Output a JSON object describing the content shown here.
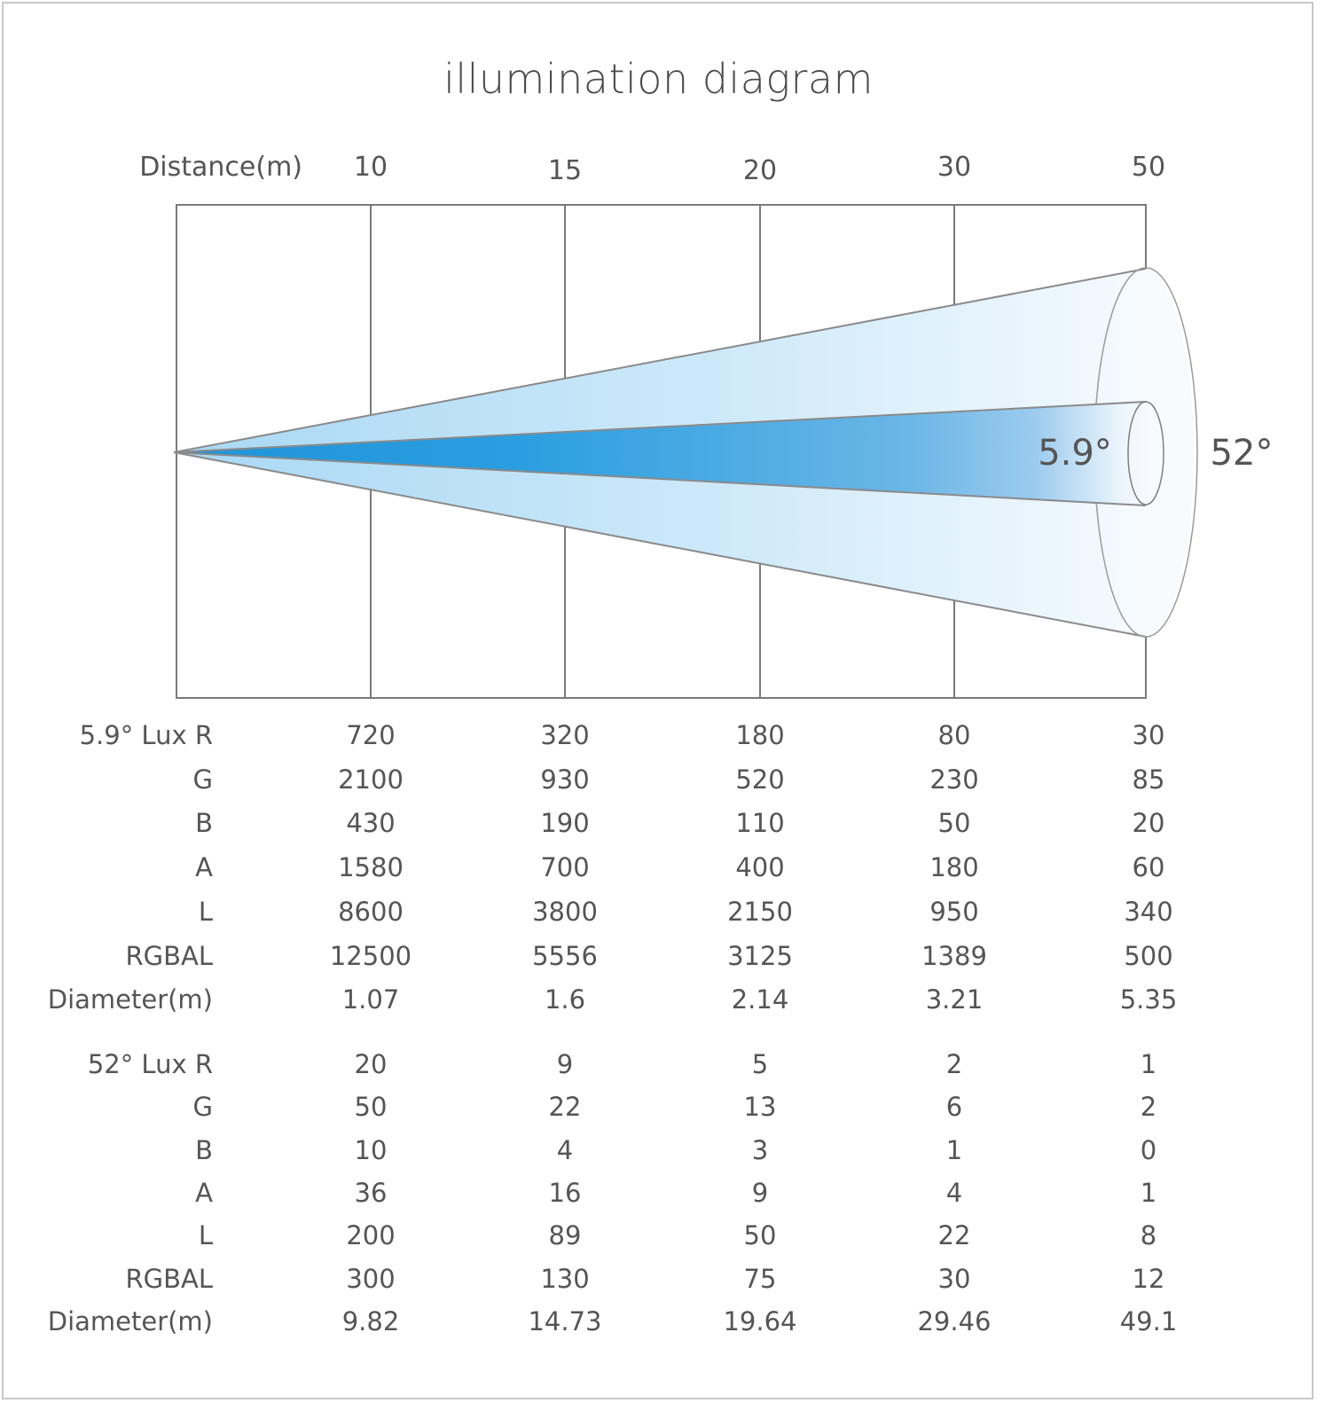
{
  "title": "illumination diagram",
  "distance_label": "Distance(m)",
  "distances": [
    "10",
    "15",
    "20",
    "30",
    "50"
  ],
  "beam_labels": {
    "narrow": "5.9°",
    "wide": "52°"
  },
  "colors": {
    "line": "#7a7a7a",
    "beam_dark": "#1f94d8",
    "beam_light": "#cfe9f8"
  },
  "tables": [
    {
      "rows": [
        {
          "label": "5.9° Lux R",
          "values": [
            "720",
            "320",
            "180",
            "80",
            "30"
          ]
        },
        {
          "label": "G",
          "values": [
            "2100",
            "930",
            "520",
            "230",
            "85"
          ]
        },
        {
          "label": "B",
          "values": [
            "430",
            "190",
            "110",
            "50",
            "20"
          ]
        },
        {
          "label": "A",
          "values": [
            "1580",
            "700",
            "400",
            "180",
            "60"
          ]
        },
        {
          "label": "L",
          "values": [
            "8600",
            "3800",
            "2150",
            "950",
            "340"
          ]
        },
        {
          "label": "RGBAL",
          "values": [
            "12500",
            "5556",
            "3125",
            "1389",
            "500"
          ]
        },
        {
          "label": "Diameter(m)",
          "values": [
            "1.07",
            "1.6",
            "2.14",
            "3.21",
            "5.35"
          ]
        }
      ]
    },
    {
      "rows": [
        {
          "label": "52° Lux R",
          "values": [
            "20",
            "9",
            "5",
            "2",
            "1"
          ]
        },
        {
          "label": "G",
          "values": [
            "50",
            "22",
            "13",
            "6",
            "2"
          ]
        },
        {
          "label": "B",
          "values": [
            "10",
            "4",
            "3",
            "1",
            "0"
          ]
        },
        {
          "label": "A",
          "values": [
            "36",
            "16",
            "9",
            "4",
            "1"
          ]
        },
        {
          "label": "L",
          "values": [
            "200",
            "89",
            "50",
            "22",
            "8"
          ]
        },
        {
          "label": "RGBAL",
          "values": [
            "300",
            "130",
            "75",
            "30",
            "12"
          ]
        },
        {
          "label": "Diameter(m)",
          "values": [
            "9.82",
            "14.73",
            "19.64",
            "29.46",
            "49.1"
          ]
        }
      ]
    }
  ]
}
